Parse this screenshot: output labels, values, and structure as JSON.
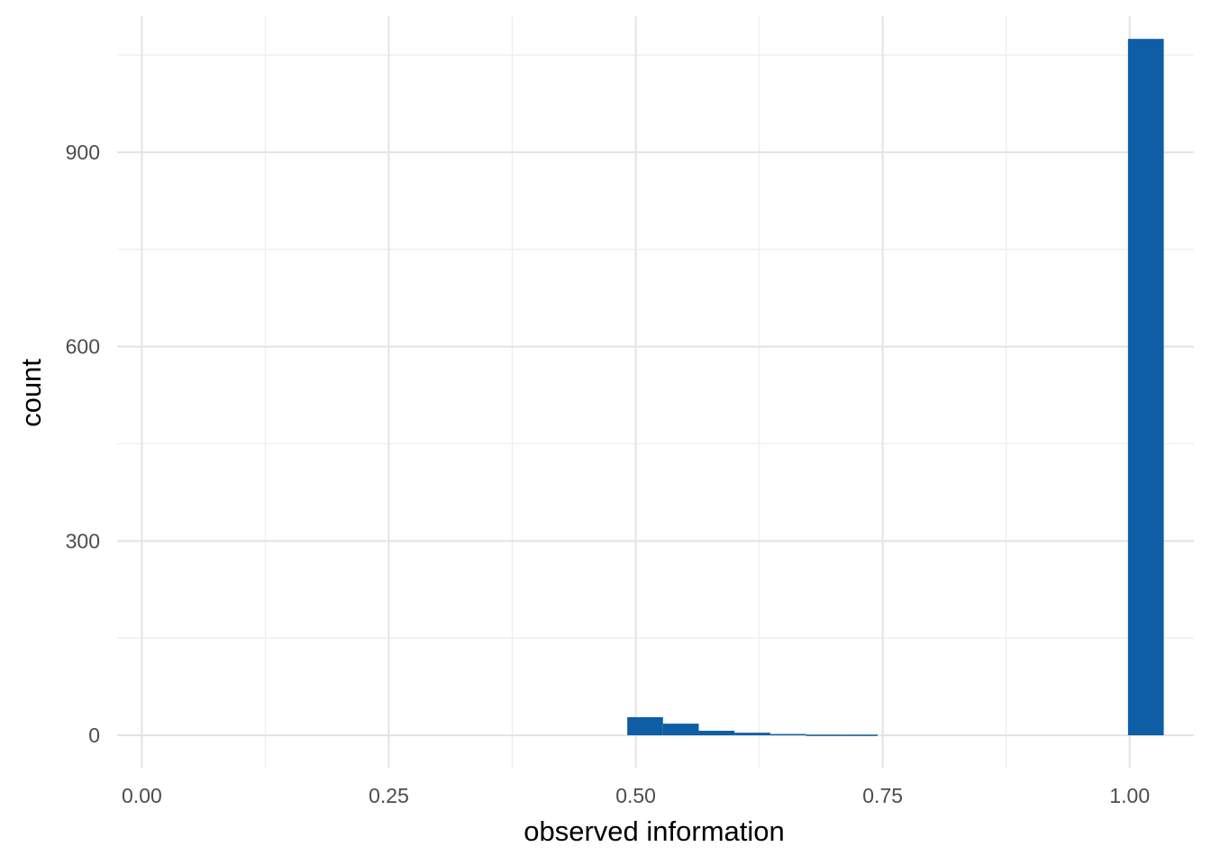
{
  "chart_data": {
    "type": "bar",
    "subtype": "histogram",
    "xlabel": "observed information",
    "ylabel": "count",
    "xlim": [
      -0.025,
      1.065
    ],
    "ylim": [
      -50,
      1110
    ],
    "x_ticks": [
      "0.00",
      "0.25",
      "0.50",
      "0.75",
      "1.00"
    ],
    "x_tick_values": [
      0.0,
      0.25,
      0.5,
      0.75,
      1.0
    ],
    "y_ticks": [
      "0",
      "300",
      "600",
      "900"
    ],
    "y_tick_values": [
      0,
      300,
      600,
      900
    ],
    "bins": [
      {
        "x0": 0.4914,
        "x1": 0.5276,
        "count": 28
      },
      {
        "x0": 0.5276,
        "x1": 0.5638,
        "count": 18
      },
      {
        "x0": 0.5638,
        "x1": 0.6,
        "count": 7
      },
      {
        "x0": 0.6,
        "x1": 0.6362,
        "count": 4
      },
      {
        "x0": 0.6362,
        "x1": 0.6724,
        "count": 2
      },
      {
        "x0": 0.6724,
        "x1": 0.7086,
        "count": 1
      },
      {
        "x0": 0.7086,
        "x1": 0.7448,
        "count": 1
      },
      {
        "x0": 0.9983,
        "x1": 1.0345,
        "count": 1075
      }
    ],
    "bar_color": "#0E5EA6",
    "grid": true,
    "legend": "none"
  }
}
